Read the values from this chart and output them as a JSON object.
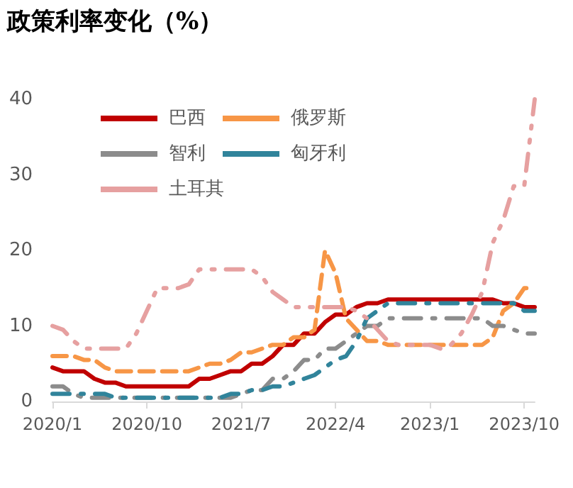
{
  "chart_data": {
    "type": "line",
    "title": "政策利率变化（%）",
    "categories": [
      "2020/1",
      null,
      null,
      null,
      null,
      null,
      null,
      null,
      null,
      "2020/10",
      null,
      null,
      null,
      null,
      null,
      null,
      null,
      null,
      "2021/7",
      null,
      null,
      null,
      null,
      null,
      null,
      null,
      null,
      "2022/4",
      null,
      null,
      null,
      null,
      null,
      null,
      null,
      null,
      "2023/1",
      null,
      null,
      null,
      null,
      null,
      null,
      null,
      null,
      "2023/10",
      null
    ],
    "series": [
      {
        "name": "巴西",
        "color": "#c00000",
        "line_style": "solid",
        "values": [
          4.5,
          4,
          4,
          4,
          3,
          2.5,
          2.5,
          2,
          2,
          2,
          2,
          2,
          2,
          2,
          3,
          3,
          3.5,
          4,
          4,
          5,
          5,
          6,
          7.5,
          7.5,
          9,
          9,
          10.5,
          11.5,
          11.5,
          12.5,
          13,
          13,
          13.5,
          13.5,
          13.5,
          13.5,
          13.5,
          13.5,
          13.5,
          13.5,
          13.5,
          13.5,
          13.5,
          13,
          13,
          12.5,
          12.5
        ]
      },
      {
        "name": "俄罗斯",
        "color": "#f79646",
        "line_style": "dashed",
        "values": [
          6,
          6,
          6,
          5.5,
          5.5,
          4.5,
          4,
          4,
          4,
          4,
          4,
          4,
          4,
          4,
          4.5,
          5,
          5,
          5.5,
          6.5,
          6.5,
          7,
          7.5,
          7.5,
          8.5,
          8.5,
          9.5,
          20,
          17,
          11,
          9.5,
          8,
          8,
          7.5,
          7.5,
          7.5,
          7.5,
          7.5,
          7.5,
          7.5,
          7.5,
          7.5,
          7.5,
          8.5,
          12,
          13,
          15,
          15
        ]
      },
      {
        "name": "智利",
        "color": "#8c8c8c",
        "line_style": "dashdot",
        "values": [
          2,
          2,
          1,
          0.5,
          0.5,
          0.5,
          0.5,
          0.5,
          0.5,
          0.5,
          0.5,
          0.5,
          0.5,
          0.5,
          0.5,
          0.5,
          0.5,
          0.5,
          1,
          1.5,
          1.5,
          3,
          3,
          4,
          5.5,
          5.5,
          7,
          7,
          8,
          9,
          10,
          10,
          11,
          11,
          11,
          11,
          11,
          11,
          11,
          11,
          11,
          11,
          10,
          10,
          9.5,
          9,
          9
        ]
      },
      {
        "name": "匈牙利",
        "color": "#31849b",
        "line_style": "dashdot",
        "values": [
          1,
          1,
          1,
          1,
          1,
          1,
          0.5,
          0.5,
          0.5,
          0.5,
          0.5,
          0.5,
          0.5,
          0.5,
          0.5,
          0.5,
          0.5,
          1,
          1,
          1.5,
          1.5,
          2,
          2,
          2.5,
          3,
          3.5,
          4.5,
          5.5,
          6,
          8,
          11,
          12,
          13,
          13,
          13,
          13,
          13,
          13,
          13,
          13,
          13,
          13,
          13,
          13,
          13,
          12,
          12
        ]
      },
      {
        "name": "土耳其",
        "color": "#e6a0a0",
        "line_style": "dashdotdot",
        "values": [
          10,
          9.5,
          8,
          7,
          7,
          7,
          7,
          7,
          9,
          12,
          15,
          15,
          15,
          15.5,
          17.5,
          17.5,
          17.5,
          17.5,
          17.5,
          17.5,
          16.5,
          14.5,
          13.5,
          12.5,
          12.5,
          12.5,
          12.5,
          12.5,
          12.5,
          12,
          11,
          9.5,
          8,
          7.5,
          7.5,
          7.5,
          7.5,
          7,
          7.5,
          9,
          11.5,
          14.5,
          21,
          24,
          28.5,
          28.5,
          40
        ]
      }
    ],
    "ylim": [
      0,
      40
    ],
    "yticks": [
      0,
      10,
      20,
      30,
      40
    ],
    "grid": false,
    "legend": "top left",
    "marker": "none"
  }
}
